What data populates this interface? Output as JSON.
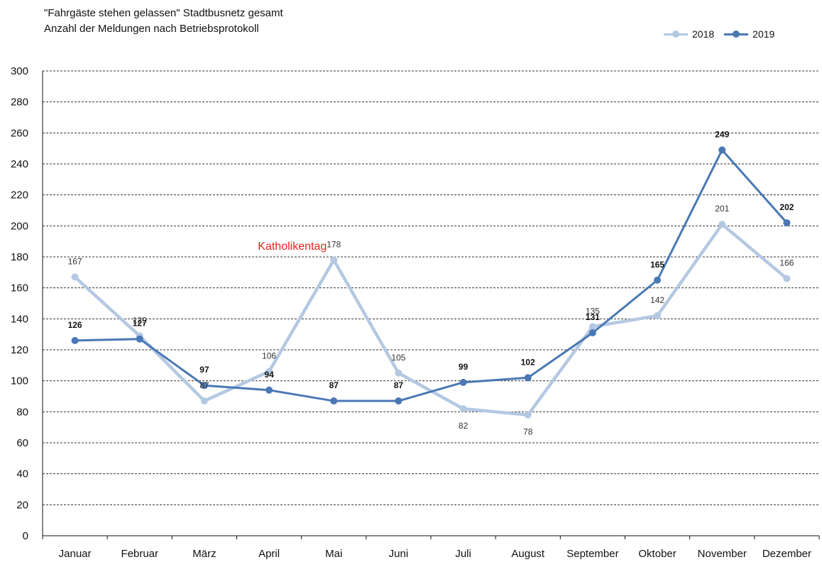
{
  "header": {
    "title": "\"Fahrgäste stehen gelassen\" Stadtbusnetz gesamt",
    "subtitle": "Anzahl der Meldungen nach Betriebsprotokoll"
  },
  "legend": {
    "placement": "top-right"
  },
  "colors": {
    "series_2018": "#b4c8e2",
    "series_2019": "#4a78b4",
    "annotation": "#e8231e",
    "grid": "#333333"
  },
  "chart_data": {
    "type": "line",
    "title": "\"Fahrgäste stehen gelassen\" Stadtbusnetz gesamt",
    "subtitle": "Anzahl der Meldungen nach Betriebsprotokoll",
    "xlabel": "",
    "ylabel": "",
    "ylim": [
      0,
      300
    ],
    "yticks": [
      0,
      20,
      40,
      60,
      80,
      100,
      120,
      140,
      160,
      180,
      200,
      220,
      240,
      260,
      280,
      300
    ],
    "grid": true,
    "legend": "top-right",
    "categories": [
      "Januar",
      "Februar",
      "März",
      "April",
      "Mai",
      "Juni",
      "Juli",
      "August",
      "September",
      "Oktober",
      "November",
      "Dezember"
    ],
    "series": [
      {
        "name": "2018",
        "values": [
          167,
          129,
          87,
          106,
          178,
          105,
          82,
          78,
          135,
          142,
          201,
          166
        ]
      },
      {
        "name": "2019",
        "values": [
          126,
          127,
          97,
          94,
          87,
          87,
          99,
          102,
          131,
          165,
          249,
          202
        ]
      }
    ],
    "annotations": [
      {
        "text": "Katholikentag",
        "category": "Mai"
      }
    ]
  }
}
